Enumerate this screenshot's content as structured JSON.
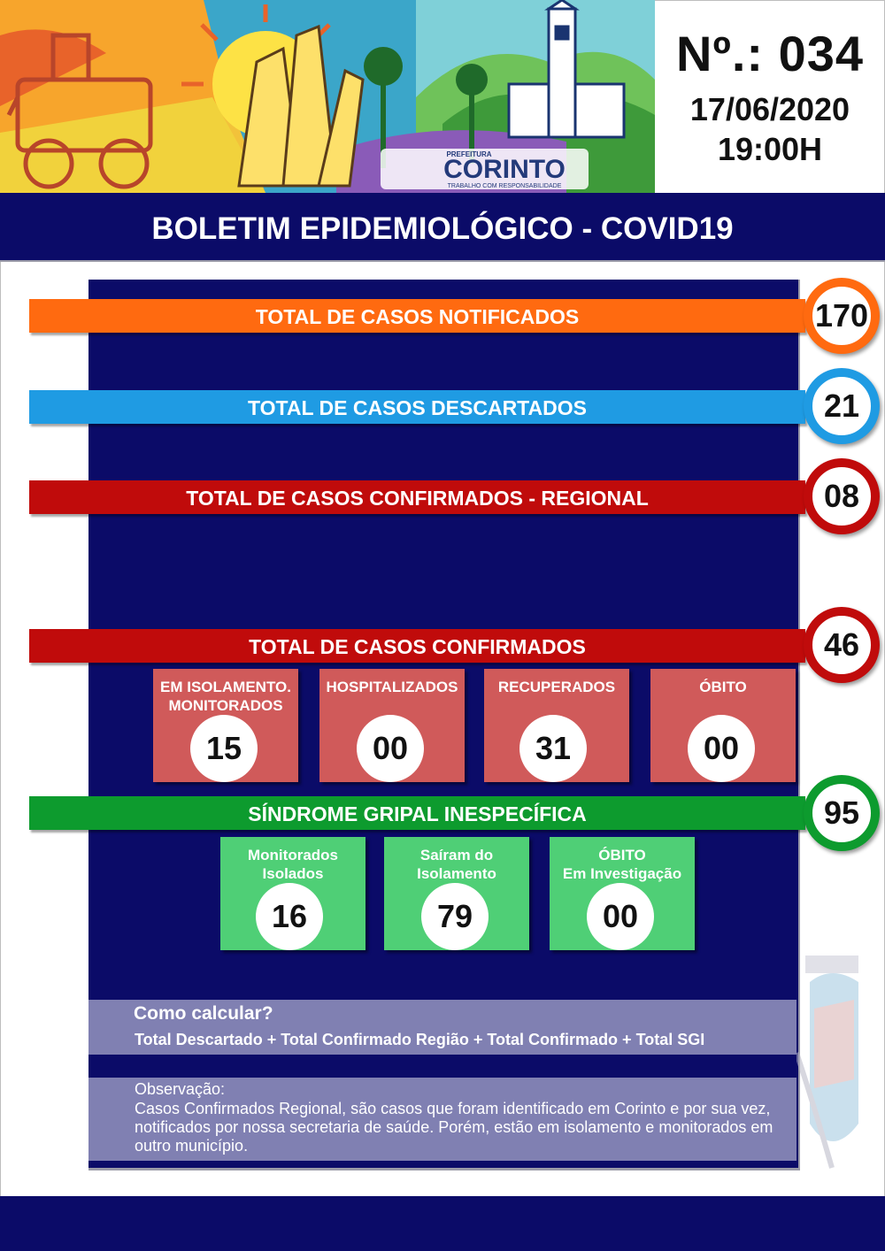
{
  "header": {
    "logo_small": "PREFEITURA",
    "logo_name": "CORINTO",
    "logo_tagline": "TRABALHO COM RESPONSABILIDADE",
    "issue": "Nº.: 034",
    "date": "17/06/2020",
    "time": "19:00H",
    "title": "BOLETIM EPIDEMIOLÓGICO - COVID19"
  },
  "stats": [
    {
      "label": "TOTAL DE CASOS NOTIFICADOS",
      "value": "170",
      "color": "#ff6a10"
    },
    {
      "label": "TOTAL DE CASOS DESCARTADOS",
      "value": "21",
      "color": "#1f9be3"
    },
    {
      "label": "TOTAL DE CASOS CONFIRMADOS - REGIONAL",
      "value": "08",
      "color": "#c00b0b"
    },
    {
      "label": "TOTAL DE CASOS CONFIRMADOS",
      "value": "46",
      "color": "#c00b0b"
    },
    {
      "label": "SÍNDROME GRIPAL INESPECÍFICA",
      "value": "95",
      "color": "#0d9b2e"
    }
  ],
  "confirmed_breakdown": [
    {
      "label_line1": "EM ISOLAMENTO.",
      "label_line2": "MONITORADOS",
      "value": "15"
    },
    {
      "label_line1": "HOSPITALIZADOS",
      "label_line2": "",
      "value": "00"
    },
    {
      "label_line1": "RECUPERADOS",
      "label_line2": "",
      "value": "31"
    },
    {
      "label_line1": "ÓBITO",
      "label_line2": "",
      "value": "00"
    }
  ],
  "sgi_breakdown": [
    {
      "label_line1": "Monitorados",
      "label_line2": "Isolados",
      "value": "16"
    },
    {
      "label_line1": "Saíram do",
      "label_line2": "Isolamento",
      "value": "79"
    },
    {
      "label_line1": "ÓBITO",
      "label_line2": "Em Investigação",
      "value": "00"
    }
  ],
  "calc": {
    "question": "Como calcular?",
    "formula": "Total Descartado + Total Confirmado Região + Total Confirmado + Total SGI"
  },
  "observation": {
    "title": "Observação:",
    "body": "Casos Confirmados Regional, são casos que foram identificado em Corinto e por sua vez, notificados por nossa secretaria de saúde. Porém, estão em isolamento e monitorados em outro município."
  },
  "colors": {
    "navy": "#0b0b68",
    "red_card": "#d05a5a",
    "green_card": "#4fcf76",
    "lavender": "#8080b2"
  }
}
